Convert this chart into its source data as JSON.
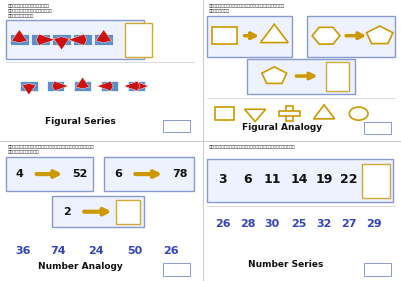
{
  "bg_color": "#ffffff",
  "panel_bg": "#eef2ff",
  "panel_border": "#8899cc",
  "answer_border": "#ccaa33",
  "answer_bg": "#ffffff",
  "blue_sq": "#5b8fc9",
  "red_col": "#cc1111",
  "gold_col": "#cc9900",
  "gold_shape_col": "#cc9900",
  "text_color": "#3344bb",
  "black": "#111111",
  "section_titles": [
    "Figural Series",
    "Figural Analogy",
    "Number Analogy",
    "Number Series"
  ],
  "number_analogy_choices": [
    "36",
    "74",
    "24",
    "50",
    "26"
  ],
  "number_series_top": [
    "3",
    "6",
    "11",
    "14",
    "19",
    "22",
    "?"
  ],
  "number_series_bottom": [
    "26",
    "28",
    "30",
    "25",
    "32",
    "27",
    "29"
  ],
  "divider_color": "#cccccc"
}
